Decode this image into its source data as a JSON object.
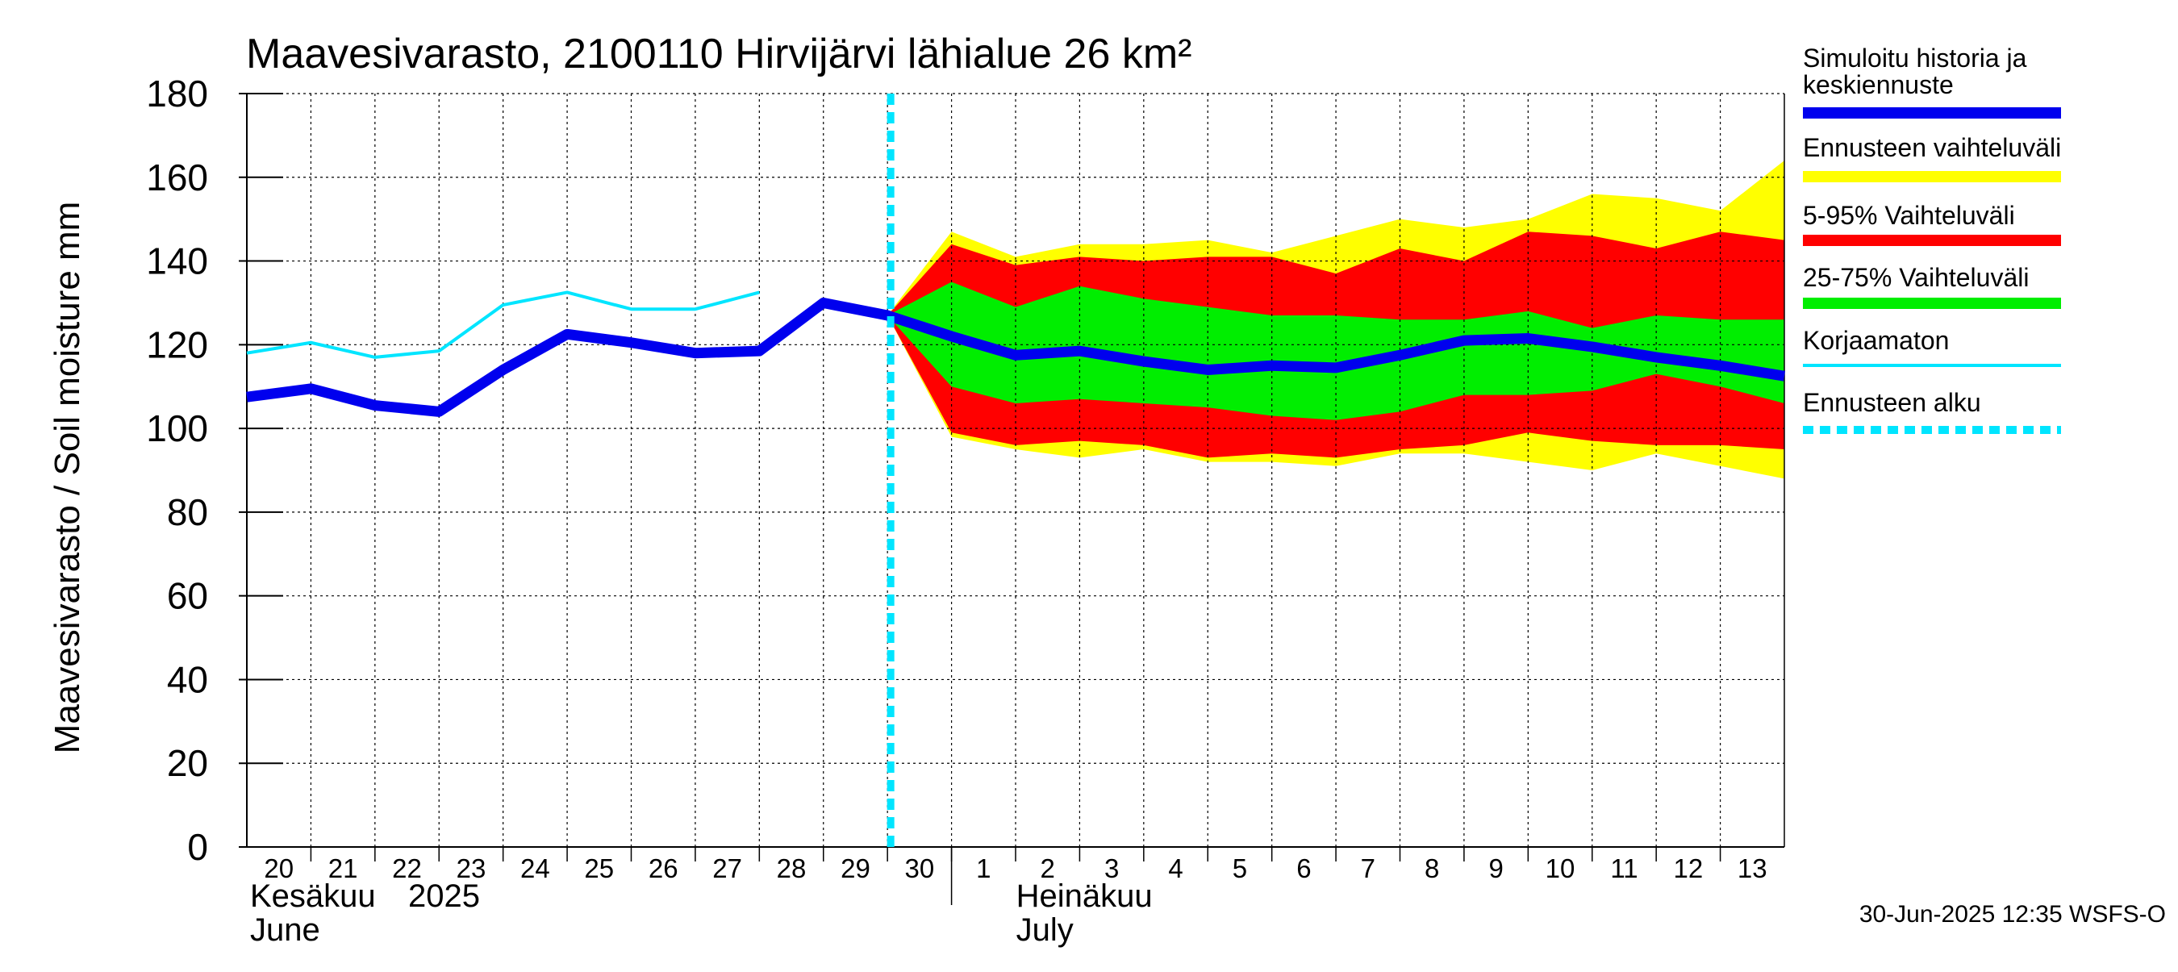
{
  "chart_data": {
    "type": "area",
    "title": "Maavesivarasto, 2100110 Hirvijärvi lähialue 26 km²",
    "ylabel": "Maavesivarasto / Soil moisture   mm",
    "ylim": [
      0,
      180
    ],
    "yticks": [
      0,
      20,
      40,
      60,
      80,
      100,
      120,
      140,
      160,
      180
    ],
    "grid": true,
    "legend_position": "right",
    "x_day_labels": [
      "20",
      "21",
      "22",
      "23",
      "24",
      "25",
      "26",
      "27",
      "28",
      "29",
      "30",
      "1",
      "2",
      "3",
      "4",
      "5",
      "6",
      "7",
      "8",
      "9",
      "10",
      "11",
      "12",
      "13"
    ],
    "month_labels": [
      {
        "fi": "Kesäkuu",
        "year": "2025",
        "en": "June"
      },
      {
        "fi": "Heinäkuu",
        "en": "July"
      }
    ],
    "forecast_start": "2025-06-30",
    "series": [
      {
        "name": "Simuloitu historia ja keskiennuste",
        "color": "#0000ee",
        "x": [
          "2025-06-20",
          "2025-06-21",
          "2025-06-22",
          "2025-06-23",
          "2025-06-24",
          "2025-06-25",
          "2025-06-26",
          "2025-06-27",
          "2025-06-28",
          "2025-06-29",
          "2025-06-30",
          "2025-07-01",
          "2025-07-02",
          "2025-07-03",
          "2025-07-04",
          "2025-07-05",
          "2025-07-06",
          "2025-07-07",
          "2025-07-08",
          "2025-07-09",
          "2025-07-10",
          "2025-07-11",
          "2025-07-12",
          "2025-07-13",
          "2025-07-14"
        ],
        "values": [
          107.5,
          109.5,
          105.5,
          104,
          114,
          122.5,
          120.5,
          118,
          118.5,
          130,
          127,
          122,
          117.5,
          118.5,
          116,
          114,
          115,
          114.5,
          117.5,
          121,
          121.5,
          119.5,
          117,
          115,
          112.5
        ]
      },
      {
        "name": "Korjaamaton",
        "color": "#00e5ff",
        "x": [
          "2025-06-20",
          "2025-06-21",
          "2025-06-22",
          "2025-06-23",
          "2025-06-24",
          "2025-06-25",
          "2025-06-26",
          "2025-06-27",
          "2025-06-28"
        ],
        "values": [
          118,
          120.5,
          117,
          118.5,
          129.5,
          132.5,
          128.5,
          128.5,
          132.5
        ]
      }
    ],
    "bands": [
      {
        "name": "Ennusteen vaihteluväli",
        "color": "#ffff00",
        "x": [
          "2025-06-30",
          "2025-07-01",
          "2025-07-02",
          "2025-07-03",
          "2025-07-04",
          "2025-07-05",
          "2025-07-06",
          "2025-07-07",
          "2025-07-08",
          "2025-07-09",
          "2025-07-10",
          "2025-07-11",
          "2025-07-12",
          "2025-07-13",
          "2025-07-14"
        ],
        "upper": [
          127,
          147,
          141,
          144,
          144,
          145,
          142,
          146,
          150,
          148,
          150,
          156,
          155,
          152,
          164
        ],
        "lower": [
          127,
          98,
          95,
          93,
          95,
          92,
          92,
          91,
          94,
          94,
          92,
          90,
          94,
          91,
          88
        ]
      },
      {
        "name": "5-95% Vaihteluväli",
        "color": "#ff0000",
        "x": [
          "2025-06-30",
          "2025-07-01",
          "2025-07-02",
          "2025-07-03",
          "2025-07-04",
          "2025-07-05",
          "2025-07-06",
          "2025-07-07",
          "2025-07-08",
          "2025-07-09",
          "2025-07-10",
          "2025-07-11",
          "2025-07-12",
          "2025-07-13",
          "2025-07-14"
        ],
        "upper": [
          127,
          144,
          139,
          141,
          140,
          141,
          141,
          137,
          143,
          140,
          147,
          146,
          143,
          147,
          145
        ],
        "lower": [
          127,
          99,
          96,
          97,
          96,
          93,
          94,
          93,
          95,
          96,
          99,
          97,
          96,
          96,
          95
        ]
      },
      {
        "name": "25-75% Vaihteluväli",
        "color": "#00ee00",
        "x": [
          "2025-06-30",
          "2025-07-01",
          "2025-07-02",
          "2025-07-03",
          "2025-07-04",
          "2025-07-05",
          "2025-07-06",
          "2025-07-07",
          "2025-07-08",
          "2025-07-09",
          "2025-07-10",
          "2025-07-11",
          "2025-07-12",
          "2025-07-13",
          "2025-07-14"
        ],
        "upper": [
          127,
          135,
          129,
          134,
          131,
          129,
          127,
          127,
          126,
          126,
          128,
          124,
          127,
          126,
          126
        ],
        "lower": [
          127,
          110,
          106,
          107,
          106,
          105,
          103,
          102,
          104,
          108,
          108,
          109,
          113,
          110,
          106
        ]
      }
    ],
    "legend": [
      {
        "label": "Simuloitu historia ja keskiennuste",
        "color": "#0000ee",
        "style": "thick"
      },
      {
        "label": "Ennusteen vaihteluväli",
        "color": "#ffff00",
        "style": "thick"
      },
      {
        "label": "5-95% Vaihteluväli",
        "color": "#ff0000",
        "style": "thick"
      },
      {
        "label": "25-75% Vaihteluväli",
        "color": "#00ee00",
        "style": "thick"
      },
      {
        "label": "Korjaamaton",
        "color": "#00e5ff",
        "style": "thin"
      },
      {
        "label": "Ennusteen alku",
        "color": "#00e5ff",
        "style": "dotted"
      }
    ],
    "footer": "30-Jun-2025 12:35 WSFS-O"
  }
}
